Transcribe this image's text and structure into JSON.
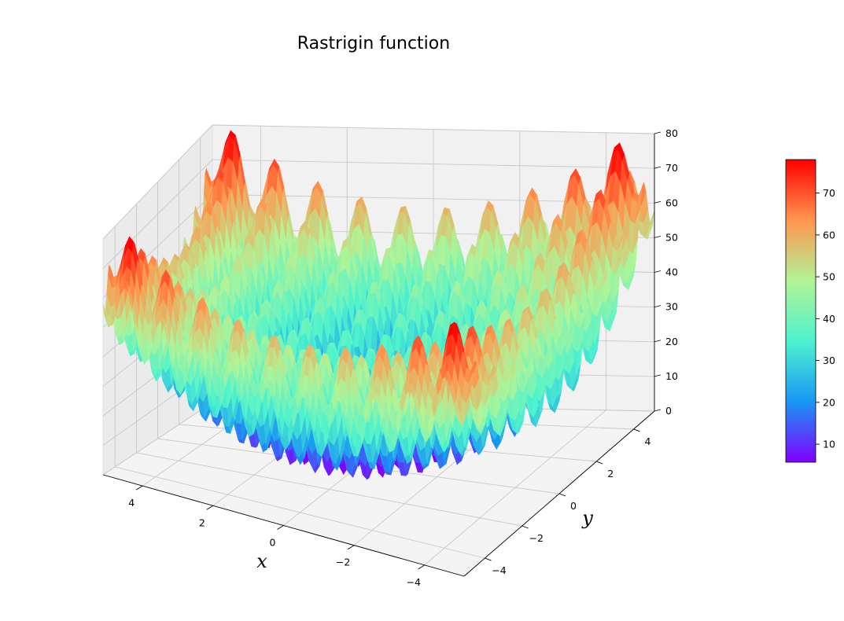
{
  "chart_data": {
    "type": "surface3d",
    "title": "Rastrigin function",
    "xlabel": "x",
    "ylabel": "y",
    "zlabel": "",
    "function": "z = 20 + x^2 - 10cos(2πx) + y^2 - 10cos(2πy)",
    "xlim": [
      -5.12,
      5.12
    ],
    "ylim": [
      -5.12,
      5.12
    ],
    "zlim": [
      0,
      80
    ],
    "x_ticks": [
      "4",
      "2",
      "0",
      "−2",
      "−4"
    ],
    "y_ticks": [
      "−4",
      "−2",
      "0",
      "2",
      "4"
    ],
    "z_ticks": [
      "0",
      "10",
      "20",
      "30",
      "40",
      "50",
      "60",
      "70",
      "80"
    ],
    "x_tick_values": [
      4,
      2,
      0,
      -2,
      -4
    ],
    "y_tick_values": [
      -4,
      -2,
      0,
      2,
      4
    ],
    "z_tick_values": [
      0,
      10,
      20,
      30,
      40,
      50,
      60,
      70,
      80
    ],
    "colormap": "rainbow",
    "colormap_stops": [
      "#8000ff",
      "#1996f3",
      "#4df3ce",
      "#b2f396",
      "#ff964f",
      "#ff0000"
    ],
    "colorbar": {
      "min": 5.7,
      "max": 78,
      "ticks": [
        "10",
        "20",
        "30",
        "40",
        "50",
        "60",
        "70"
      ],
      "tick_values": [
        10,
        20,
        30,
        40,
        50,
        60,
        70
      ]
    },
    "grid": true
  }
}
